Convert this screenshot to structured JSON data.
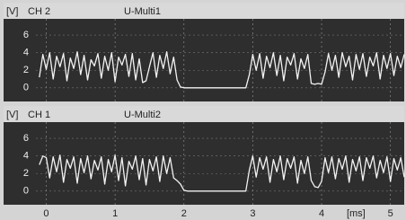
{
  "chart_data": [
    {
      "type": "line",
      "y_label": "[V]",
      "channel": "CH 2",
      "title": "U-Multi1",
      "xlim": [
        -0.15,
        5.2
      ],
      "ylim": [
        -1.55,
        7.85
      ],
      "yticks": [
        0,
        2,
        4,
        6
      ],
      "grid": true,
      "x": [
        -0.1,
        -0.05,
        0,
        0.05,
        0.1,
        0.15,
        0.2,
        0.25,
        0.3,
        0.35,
        0.4,
        0.45,
        0.5,
        0.55,
        0.6,
        0.65,
        0.7,
        0.75,
        0.8,
        0.85,
        0.9,
        0.95,
        1,
        1.05,
        1.1,
        1.15,
        1.2,
        1.25,
        1.3,
        1.35,
        1.4,
        1.45,
        1.5,
        1.55,
        1.6,
        1.65,
        1.7,
        1.75,
        1.8,
        1.85,
        1.9,
        1.95,
        2,
        2.05,
        2.1,
        2.15,
        2.2,
        2.25,
        2.3,
        2.35,
        2.4,
        2.45,
        2.5,
        2.55,
        2.6,
        2.65,
        2.7,
        2.75,
        2.8,
        2.85,
        2.9,
        2.95,
        3,
        3.05,
        3.1,
        3.15,
        3.2,
        3.25,
        3.3,
        3.35,
        3.4,
        3.45,
        3.5,
        3.55,
        3.6,
        3.65,
        3.7,
        3.75,
        3.8,
        3.85,
        3.9,
        3.95,
        4,
        4.05,
        4.1,
        4.15,
        4.2,
        4.25,
        4.3,
        4.35,
        4.4,
        4.45,
        4.5,
        4.55,
        4.6,
        4.65,
        4.7,
        4.75,
        4.8,
        4.85,
        4.9,
        4.95,
        5,
        5.05,
        5.1,
        5.15,
        5.2
      ],
      "series": [
        {
          "name": "CH 2",
          "color": "#f2f2f2",
          "values": [
            1.2,
            3.8,
            2.1,
            4.0,
            1.0,
            3.6,
            2.4,
            3.9,
            0.8,
            3.4,
            2.2,
            4.1,
            1.5,
            3.7,
            0.9,
            3.2,
            2.5,
            3.9,
            1.1,
            3.6,
            2.0,
            4.0,
            0.7,
            3.5,
            2.6,
            3.8,
            1.3,
            3.9,
            0.9,
            3.3,
            0.6,
            0.8,
            2.4,
            4.0,
            1.2,
            3.7,
            2.2,
            4.1,
            1.6,
            3.5,
            0.9,
            0.1,
            0,
            0,
            0,
            0,
            0,
            0,
            0,
            0,
            0,
            0,
            0,
            0,
            0,
            0,
            0,
            0,
            0,
            0,
            0,
            1.5,
            3.8,
            2.0,
            3.9,
            1.1,
            3.6,
            2.3,
            4.0,
            1.4,
            3.7,
            0.8,
            3.5,
            2.6,
            3.9,
            1.0,
            3.3,
            2.2,
            3.8,
            0.5,
            0.4,
            0.5,
            0.4,
            1.8,
            3.9,
            2.0,
            3.7,
            1.2,
            4.0,
            2.4,
            3.6,
            0.9,
            3.8,
            2.1,
            3.9,
            1.3,
            3.5,
            2.5,
            4.0,
            1.0,
            3.7,
            2.2,
            3.9,
            1.4,
            3.6,
            2.3,
            3.8
          ]
        }
      ]
    },
    {
      "type": "line",
      "y_label": "[V]",
      "channel": "CH 1",
      "title": "U-Multi2",
      "x_label": "[ms]",
      "xlim": [
        -0.15,
        5.2
      ],
      "ylim": [
        -1.55,
        7.85
      ],
      "yticks": [
        0,
        2,
        4,
        6
      ],
      "xticks": [
        0,
        1,
        2,
        3,
        4,
        5
      ],
      "grid": true,
      "x": [
        -0.1,
        -0.05,
        0,
        0.05,
        0.1,
        0.15,
        0.2,
        0.25,
        0.3,
        0.35,
        0.4,
        0.45,
        0.5,
        0.55,
        0.6,
        0.65,
        0.7,
        0.75,
        0.8,
        0.85,
        0.9,
        0.95,
        1,
        1.05,
        1.1,
        1.15,
        1.2,
        1.25,
        1.3,
        1.35,
        1.4,
        1.45,
        1.5,
        1.55,
        1.6,
        1.65,
        1.7,
        1.75,
        1.8,
        1.85,
        1.9,
        1.95,
        2,
        2.05,
        2.1,
        2.15,
        2.2,
        2.25,
        2.3,
        2.35,
        2.4,
        2.45,
        2.5,
        2.55,
        2.6,
        2.65,
        2.7,
        2.75,
        2.8,
        2.85,
        2.9,
        2.95,
        3,
        3.05,
        3.1,
        3.15,
        3.2,
        3.25,
        3.3,
        3.35,
        3.4,
        3.45,
        3.5,
        3.55,
        3.6,
        3.65,
        3.7,
        3.75,
        3.8,
        3.85,
        3.9,
        3.95,
        4,
        4.05,
        4.1,
        4.15,
        4.2,
        4.25,
        4.3,
        4.35,
        4.4,
        4.45,
        4.5,
        4.55,
        4.6,
        4.65,
        4.7,
        4.75,
        4.8,
        4.85,
        4.9,
        4.95,
        5,
        5.05,
        5.1,
        5.15,
        5.2
      ],
      "series": [
        {
          "name": "CH 1",
          "color": "#f2f2f2",
          "values": [
            3.0,
            4.0,
            3.8,
            1.5,
            3.9,
            2.2,
            4.1,
            1.0,
            3.6,
            2.6,
            3.9,
            0.9,
            3.7,
            2.1,
            4.0,
            1.4,
            3.5,
            2.4,
            3.9,
            0.8,
            3.6,
            2.2,
            4.1,
            1.2,
            3.8,
            0.6,
            3.4,
            2.5,
            4.0,
            1.3,
            3.7,
            0.7,
            3.6,
            2.3,
            3.9,
            1.1,
            4.0,
            2.0,
            3.8,
            1.5,
            1.2,
            0.8,
            0.1,
            0,
            0,
            0,
            0,
            0,
            0,
            0,
            0,
            0,
            0,
            0,
            0,
            0,
            0,
            0,
            0,
            0,
            0,
            2.4,
            4.0,
            1.6,
            3.8,
            2.5,
            3.9,
            1.0,
            3.6,
            2.2,
            4.0,
            1.3,
            3.7,
            2.6,
            3.9,
            0.9,
            3.5,
            2.0,
            3.9,
            1.2,
            0.5,
            0.4,
            1.1,
            3.8,
            2.1,
            3.9,
            1.4,
            3.7,
            2.5,
            4.0,
            1.0,
            3.6,
            2.3,
            3.9,
            1.2,
            3.8,
            2.6,
            4.0,
            1.5,
            3.5,
            2.1,
            3.9,
            1.1,
            3.7,
            2.4,
            3.8,
            1.6
          ]
        }
      ]
    }
  ]
}
